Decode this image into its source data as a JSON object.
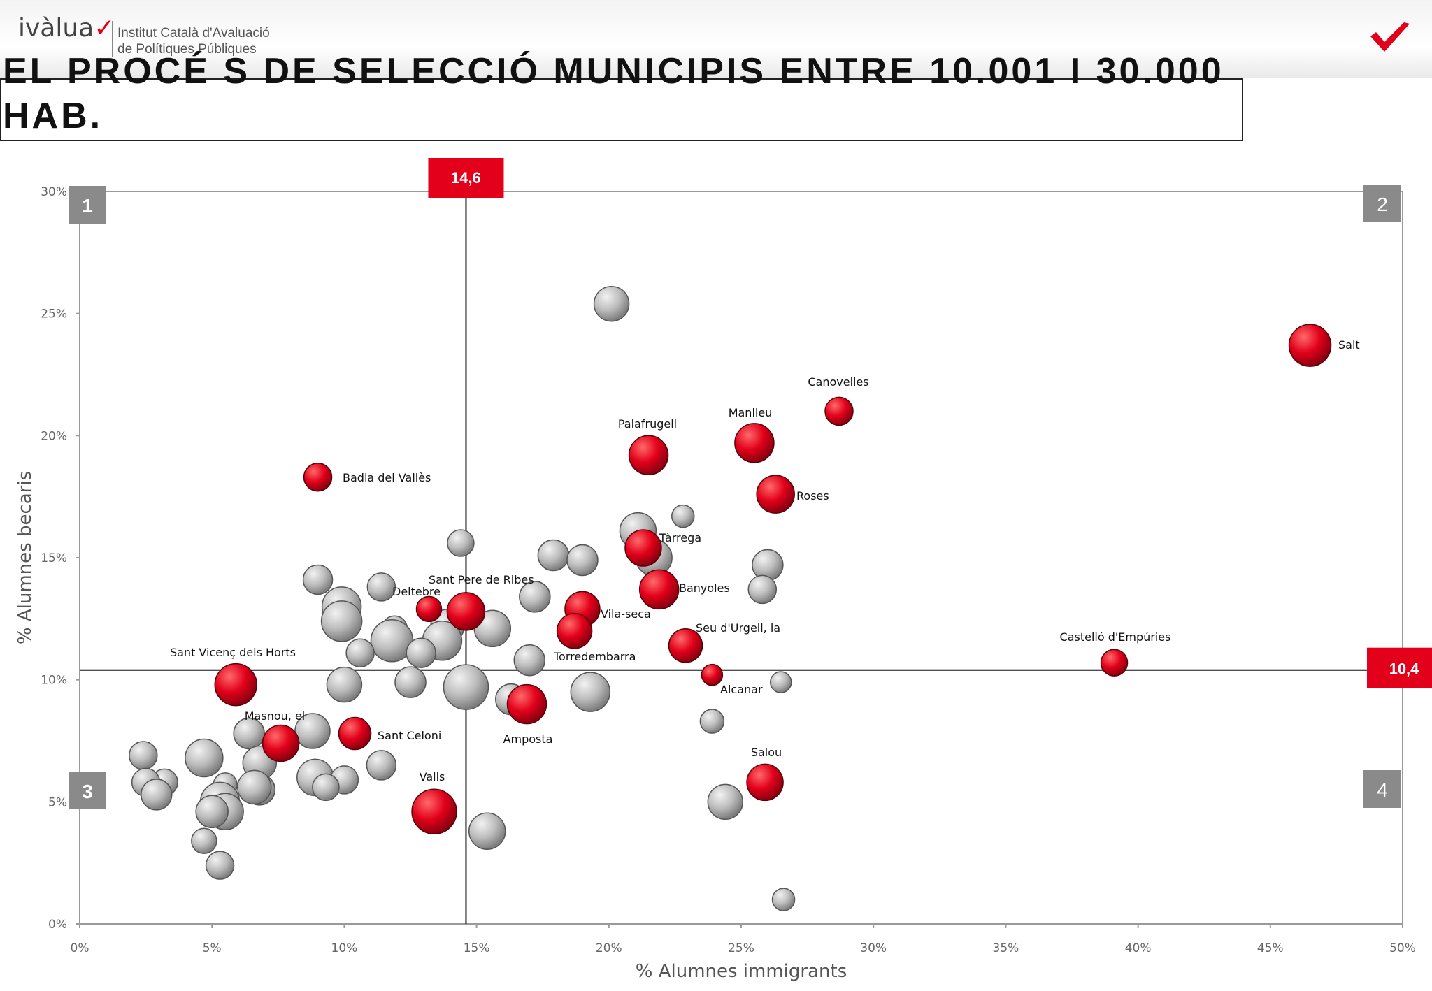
{
  "header": {
    "logo_text": "ivàlua",
    "institute_line1": "Institut Català d'Avaluació",
    "institute_line2": "de Polítiques Públiques",
    "title": "EL PROCÉ S DE SELECCIÓ MUNICIPIS ENTRE 10.001 I 30.000 HAB."
  },
  "colors": {
    "red": "#e2001a",
    "gray_bubble": "#bdbdbd",
    "quadrant_box": "#8a8a8a"
  },
  "chart_data": {
    "type": "scatter",
    "title": "",
    "xlabel": "% Alumnes immigrants",
    "ylabel": "% Alumnes becaris",
    "xlim": [
      0,
      50
    ],
    "ylim": [
      0,
      30
    ],
    "x_ticks": [
      "0%",
      "5%",
      "10%",
      "15%",
      "20%",
      "25%",
      "30%",
      "35%",
      "40%",
      "45%",
      "50%"
    ],
    "y_ticks": [
      "0%",
      "5%",
      "10%",
      "15%",
      "20%",
      "25%",
      "30%"
    ],
    "grid": false,
    "reference_lines": [
      {
        "axis": "x",
        "value": 14.6,
        "label": "14,6"
      },
      {
        "axis": "y",
        "value": 10.4,
        "label": "10,4"
      }
    ],
    "quadrant_labels": [
      "1",
      "2",
      "3",
      "4"
    ],
    "series": [
      {
        "color": "red",
        "points": [
          {
            "x": 46.5,
            "y": 23.7,
            "r": 1.5,
            "label": "Salt"
          },
          {
            "x": 28.7,
            "y": 21.0,
            "r": 1.0,
            "label": "Canovelles"
          },
          {
            "x": 25.5,
            "y": 19.7,
            "r": 1.4,
            "label": "Manlleu"
          },
          {
            "x": 21.5,
            "y": 19.2,
            "r": 1.4,
            "label": "Palafrugell"
          },
          {
            "x": 26.3,
            "y": 17.6,
            "r": 1.35,
            "label": "Roses"
          },
          {
            "x": 9.0,
            "y": 18.3,
            "r": 1.0,
            "label": "Badia del Vallès"
          },
          {
            "x": 21.3,
            "y": 15.4,
            "r": 1.3,
            "label": "Tàrrega"
          },
          {
            "x": 21.9,
            "y": 13.7,
            "r": 1.4,
            "label": "Banyoles"
          },
          {
            "x": 14.6,
            "y": 12.8,
            "r": 1.35,
            "label": "Sant Pere de Ribes"
          },
          {
            "x": 13.2,
            "y": 12.9,
            "r": 0.9,
            "label": "Deltebre"
          },
          {
            "x": 19.0,
            "y": 12.9,
            "r": 1.25,
            "label": "Vila-seca"
          },
          {
            "x": 18.7,
            "y": 12.0,
            "r": 1.25,
            "label": "Torredembarra"
          },
          {
            "x": 22.9,
            "y": 11.4,
            "r": 1.2,
            "label": "Seu d'Urgell, la"
          },
          {
            "x": 39.1,
            "y": 10.7,
            "r": 0.95,
            "label": "Castelló d'Empúries"
          },
          {
            "x": 23.9,
            "y": 10.2,
            "r": 0.75,
            "label": "Alcanar"
          },
          {
            "x": 5.9,
            "y": 9.8,
            "r": 1.5,
            "label": "Sant Vicenç dels Horts"
          },
          {
            "x": 16.9,
            "y": 9.0,
            "r": 1.4,
            "label": "Amposta"
          },
          {
            "x": 7.6,
            "y": 7.4,
            "r": 1.3,
            "label": "Masnou, el"
          },
          {
            "x": 10.4,
            "y": 7.8,
            "r": 1.15,
            "label": "Sant Celoni"
          },
          {
            "x": 25.9,
            "y": 5.8,
            "r": 1.3,
            "label": "Salou"
          },
          {
            "x": 13.4,
            "y": 4.6,
            "r": 1.6,
            "label": "Valls"
          }
        ]
      },
      {
        "color": "gray",
        "points": [
          {
            "x": 20.1,
            "y": 25.4,
            "r": 1.25
          },
          {
            "x": 22.8,
            "y": 16.7,
            "r": 0.8
          },
          {
            "x": 21.1,
            "y": 16.1,
            "r": 1.3
          },
          {
            "x": 21.7,
            "y": 15.0,
            "r": 1.3
          },
          {
            "x": 14.4,
            "y": 15.6,
            "r": 0.95
          },
          {
            "x": 17.9,
            "y": 15.1,
            "r": 1.1
          },
          {
            "x": 19.0,
            "y": 14.9,
            "r": 1.1
          },
          {
            "x": 26.0,
            "y": 14.7,
            "r": 1.1
          },
          {
            "x": 25.8,
            "y": 13.7,
            "r": 1.0
          },
          {
            "x": 9.0,
            "y": 14.1,
            "r": 1.05
          },
          {
            "x": 11.4,
            "y": 13.8,
            "r": 1.0
          },
          {
            "x": 9.9,
            "y": 13.0,
            "r": 1.4
          },
          {
            "x": 9.9,
            "y": 12.4,
            "r": 1.45
          },
          {
            "x": 17.2,
            "y": 13.4,
            "r": 1.1
          },
          {
            "x": 11.9,
            "y": 12.1,
            "r": 0.9
          },
          {
            "x": 13.9,
            "y": 12.2,
            "r": 1.2
          },
          {
            "x": 15.6,
            "y": 12.1,
            "r": 1.3
          },
          {
            "x": 11.8,
            "y": 11.6,
            "r": 1.5
          },
          {
            "x": 13.7,
            "y": 11.6,
            "r": 1.4
          },
          {
            "x": 10.6,
            "y": 11.1,
            "r": 1.0
          },
          {
            "x": 12.9,
            "y": 11.1,
            "r": 1.05
          },
          {
            "x": 17.0,
            "y": 10.8,
            "r": 1.1
          },
          {
            "x": 10.0,
            "y": 9.8,
            "r": 1.25
          },
          {
            "x": 12.5,
            "y": 9.9,
            "r": 1.1
          },
          {
            "x": 14.6,
            "y": 9.7,
            "r": 1.6
          },
          {
            "x": 19.3,
            "y": 9.5,
            "r": 1.4
          },
          {
            "x": 16.3,
            "y": 9.2,
            "r": 1.1
          },
          {
            "x": 26.5,
            "y": 9.9,
            "r": 0.75
          },
          {
            "x": 23.9,
            "y": 8.3,
            "r": 0.85
          },
          {
            "x": 8.8,
            "y": 7.9,
            "r": 1.25
          },
          {
            "x": 6.4,
            "y": 7.8,
            "r": 1.1
          },
          {
            "x": 2.4,
            "y": 6.9,
            "r": 1.0
          },
          {
            "x": 4.7,
            "y": 6.8,
            "r": 1.35
          },
          {
            "x": 6.8,
            "y": 6.6,
            "r": 1.2
          },
          {
            "x": 11.4,
            "y": 6.5,
            "r": 1.05
          },
          {
            "x": 8.9,
            "y": 6.0,
            "r": 1.3
          },
          {
            "x": 10.0,
            "y": 5.9,
            "r": 1.0
          },
          {
            "x": 9.3,
            "y": 5.6,
            "r": 0.95
          },
          {
            "x": 3.2,
            "y": 5.8,
            "r": 0.95
          },
          {
            "x": 2.5,
            "y": 5.8,
            "r": 1.0
          },
          {
            "x": 2.9,
            "y": 5.3,
            "r": 1.1
          },
          {
            "x": 5.5,
            "y": 5.7,
            "r": 0.85
          },
          {
            "x": 6.8,
            "y": 5.5,
            "r": 1.1
          },
          {
            "x": 6.6,
            "y": 5.6,
            "r": 1.2
          },
          {
            "x": 5.3,
            "y": 5.0,
            "r": 1.4
          },
          {
            "x": 5.5,
            "y": 4.6,
            "r": 1.3
          },
          {
            "x": 5.0,
            "y": 4.6,
            "r": 1.15
          },
          {
            "x": 4.7,
            "y": 3.4,
            "r": 0.9
          },
          {
            "x": 5.3,
            "y": 2.4,
            "r": 1.0
          },
          {
            "x": 15.4,
            "y": 3.8,
            "r": 1.3
          },
          {
            "x": 24.4,
            "y": 5.0,
            "r": 1.25
          },
          {
            "x": 26.6,
            "y": 1.0,
            "r": 0.8
          }
        ]
      }
    ]
  }
}
